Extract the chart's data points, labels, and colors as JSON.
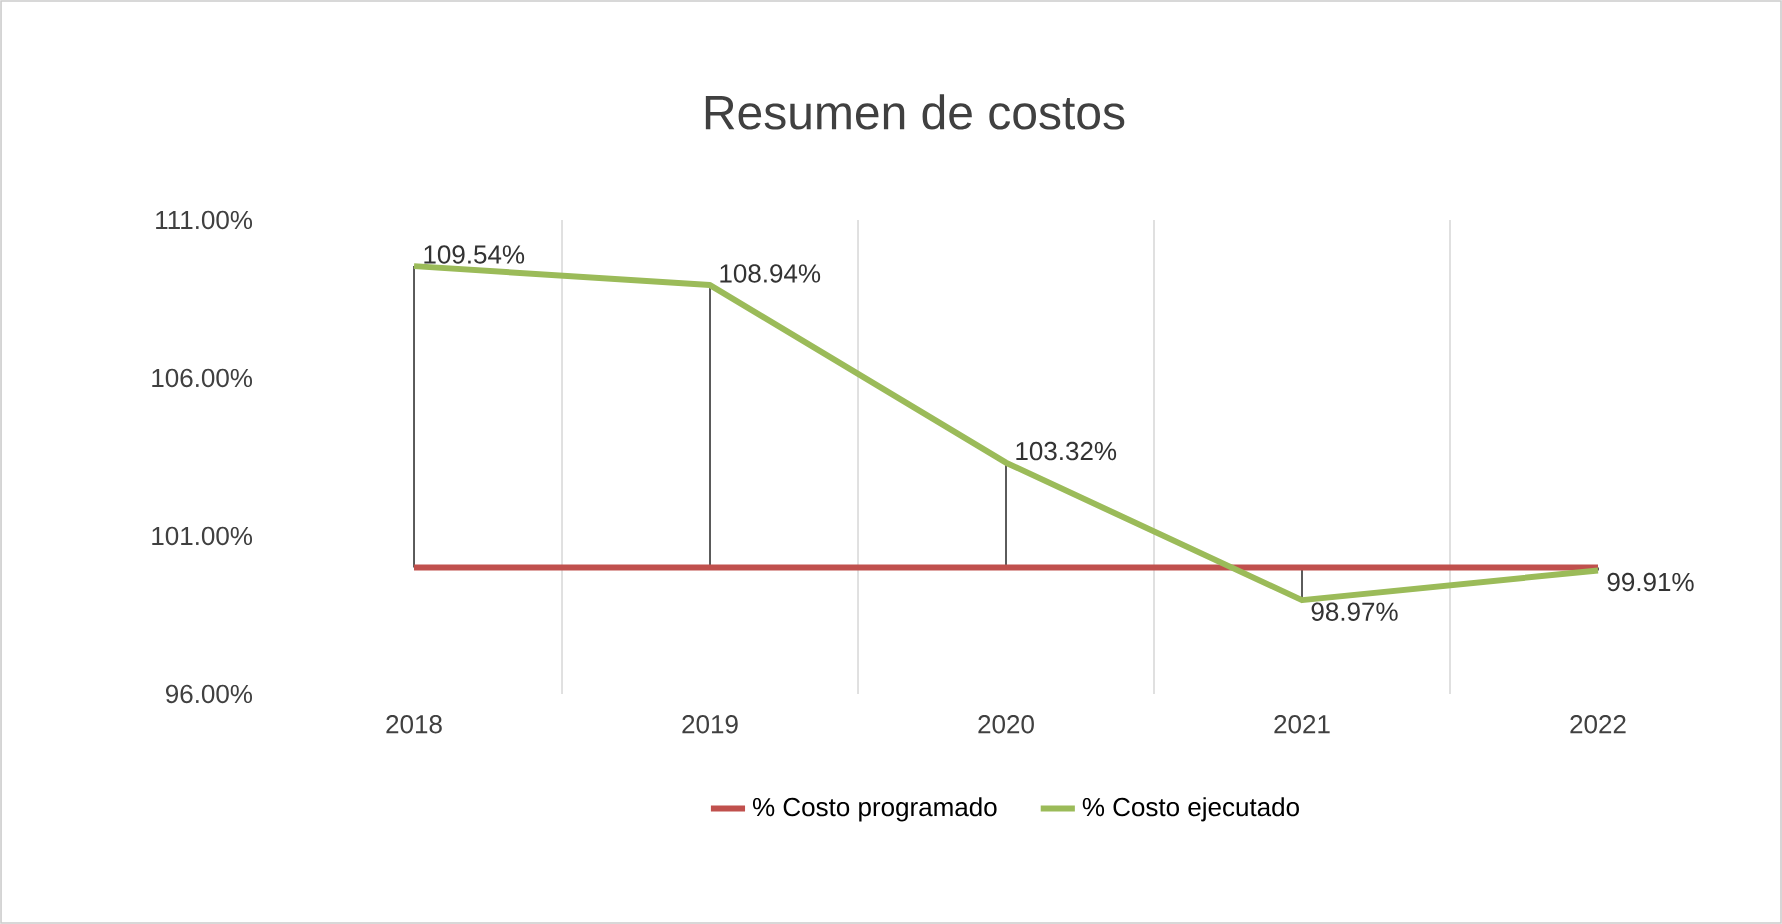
{
  "chart_data": {
    "type": "line",
    "title": "Resumen de costos",
    "categories": [
      "2018",
      "2019",
      "2020",
      "2021",
      "2022"
    ],
    "series": [
      {
        "name": "% Costo programado",
        "color": "#c0504d",
        "values": [
          100,
          100,
          100,
          100,
          100
        ]
      },
      {
        "name": "% Costo ejecutado",
        "color": "#9bbb59",
        "values": [
          109.54,
          108.94,
          103.32,
          98.97,
          99.91
        ],
        "value_labels": [
          "109.54%",
          "108.94%",
          "103.32%",
          "98.97%",
          "99.91%"
        ]
      }
    ],
    "ylim": [
      96,
      111
    ],
    "yticks": [
      {
        "value": 96,
        "label": "96.00%"
      },
      {
        "value": 101,
        "label": "101.00%"
      },
      {
        "value": 106,
        "label": "106.00%"
      },
      {
        "value": 111,
        "label": "111.00%"
      }
    ],
    "grid": true,
    "legend": "bottom",
    "marker": "none",
    "line_style": "solid"
  }
}
